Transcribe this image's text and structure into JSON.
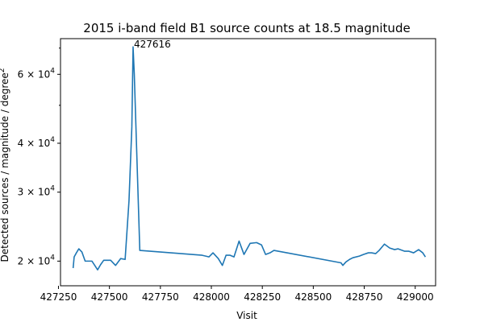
{
  "chart_data": {
    "type": "line",
    "title": "2015 i-band field B1 source counts at 18.5 magnitude",
    "xlabel": "Visit",
    "ylabel": "Detected sources / magnitude / degree^2",
    "ylabel_text": "Detected sources / magnitude / degree",
    "ylabel_sup": "2",
    "yscale": "log",
    "xlim": [
      427260,
      429100
    ],
    "ylim": [
      17300,
      74000
    ],
    "xticks": [
      {
        "value": 427250,
        "label": "427250"
      },
      {
        "value": 427500,
        "label": "427500"
      },
      {
        "value": 427750,
        "label": "427750"
      },
      {
        "value": 428000,
        "label": "428000"
      },
      {
        "value": 428250,
        "label": "428250"
      },
      {
        "value": 428500,
        "label": "428500"
      },
      {
        "value": 428750,
        "label": "428750"
      },
      {
        "value": 429000,
        "label": "429000"
      }
    ],
    "yticks_major": [
      {
        "value": 20000,
        "mantissa": "2",
        "base": "10",
        "exp": "4"
      },
      {
        "value": 30000,
        "mantissa": "3",
        "base": "10",
        "exp": "4"
      },
      {
        "value": 40000,
        "mantissa": "4",
        "base": "10",
        "exp": "4"
      },
      {
        "value": 60000,
        "mantissa": "6",
        "base": "10",
        "exp": "4"
      }
    ],
    "yticks_minor": [
      50000,
      70000
    ],
    "annotation": {
      "text": "427616",
      "x": 427616,
      "y": 70500
    },
    "series": [
      {
        "color": "#1f77b4",
        "x": [
          427322,
          427327,
          427338,
          427350,
          427365,
          427381,
          427396,
          427414,
          427428,
          427442,
          427457,
          427472,
          427488,
          427506,
          427530,
          427555,
          427577,
          427596,
          427610,
          427616,
          427622,
          427649,
          427955,
          427972,
          427988,
          428008,
          428034,
          428054,
          428072,
          428092,
          428111,
          428136,
          428160,
          428190,
          428222,
          428246,
          428266,
          428288,
          428307,
          428636,
          428645,
          428660,
          428678,
          428694,
          428726,
          428746,
          428770,
          428786,
          428806,
          428823,
          428849,
          428875,
          428899,
          428916,
          428947,
          428968,
          428992,
          429017,
          429037,
          429050
        ],
        "y": [
          19200,
          20500,
          21000,
          21500,
          21100,
          20000,
          20000,
          20000,
          19500,
          19000,
          19600,
          20100,
          20100,
          20100,
          19500,
          20300,
          20200,
          28500,
          44000,
          70500,
          60000,
          21300,
          20700,
          20600,
          20500,
          21000,
          20300,
          19500,
          20700,
          20700,
          20500,
          22500,
          20800,
          22200,
          22300,
          22000,
          20800,
          21000,
          21300,
          19800,
          19500,
          19900,
          20200,
          20400,
          20600,
          20800,
          21000,
          21000,
          20900,
          21300,
          22100,
          21600,
          21400,
          21500,
          21200,
          21200,
          21000,
          21400,
          21000,
          20500
        ]
      }
    ]
  }
}
